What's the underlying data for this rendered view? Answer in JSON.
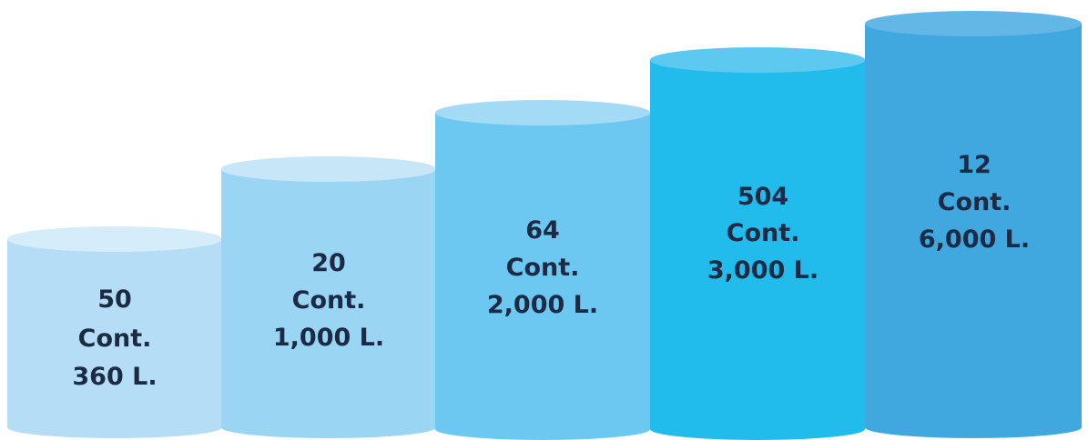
{
  "cylinders": [
    {
      "count": "50",
      "unit": "Cont.",
      "volume": "360 L.",
      "body_color": "#b5def6",
      "top_color": "#d5ecfa"
    },
    {
      "count": "20",
      "unit": "Cont.",
      "volume": "1,000 L.",
      "body_color": "#9bd5f4",
      "top_color": "#c7e7f9"
    },
    {
      "count": "64",
      "unit": "Cont.",
      "volume": "2,000 L.",
      "body_color": "#6cc8f1",
      "top_color": "#a3daf5"
    },
    {
      "count": "504",
      "unit": "Cont.",
      "volume": "3,000 L.",
      "body_color": "#21bcec",
      "top_color": "#5ec9f0"
    },
    {
      "count": "12",
      "unit": "Cont.",
      "volume": "6,000 L.",
      "body_color": "#41a7df",
      "top_color": "#62b7e6"
    }
  ]
}
